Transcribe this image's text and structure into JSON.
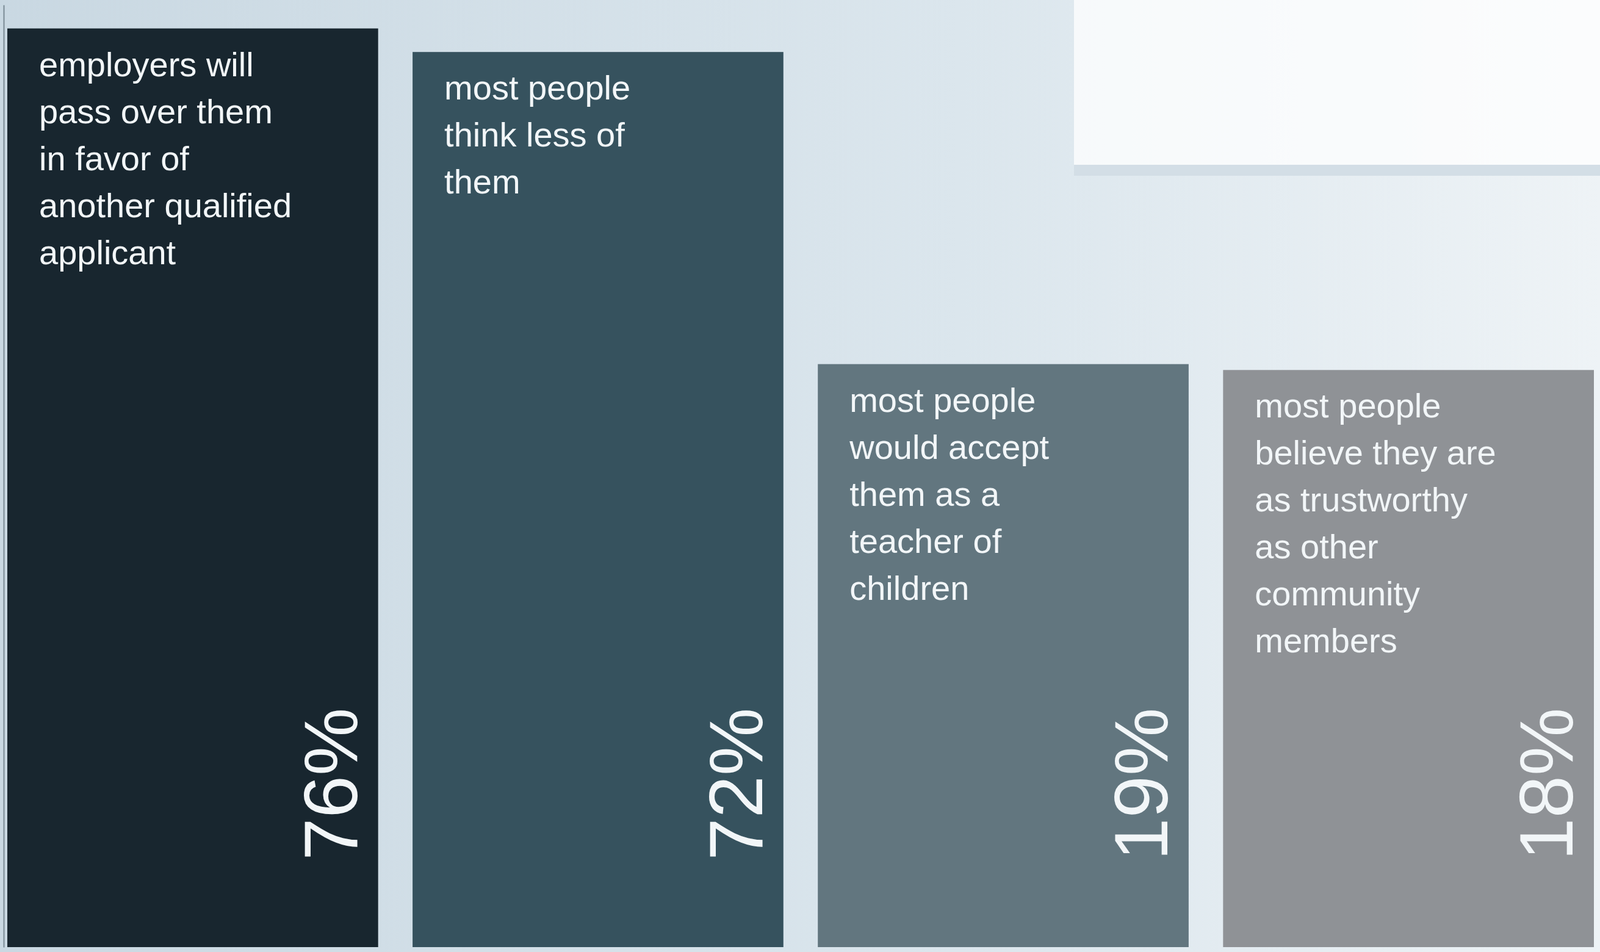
{
  "chart_data": {
    "type": "bar",
    "categories": [
      "employers will pass over them in favor of another qualified applicant",
      "most people think less of them",
      "most people would accept them as a teacher of children",
      "most people believe they are as trustworthy as other community members"
    ],
    "values": [
      76,
      72,
      19,
      18
    ],
    "value_labels": [
      "76%",
      "72%",
      "19%",
      "18%"
    ],
    "colors": [
      "#18262f",
      "#36525e",
      "#62767f",
      "#8f9296"
    ],
    "ylim": [
      -80,
      80
    ],
    "yticks": [],
    "tick_labels": false,
    "data_labels": true,
    "grid": false
  }
}
